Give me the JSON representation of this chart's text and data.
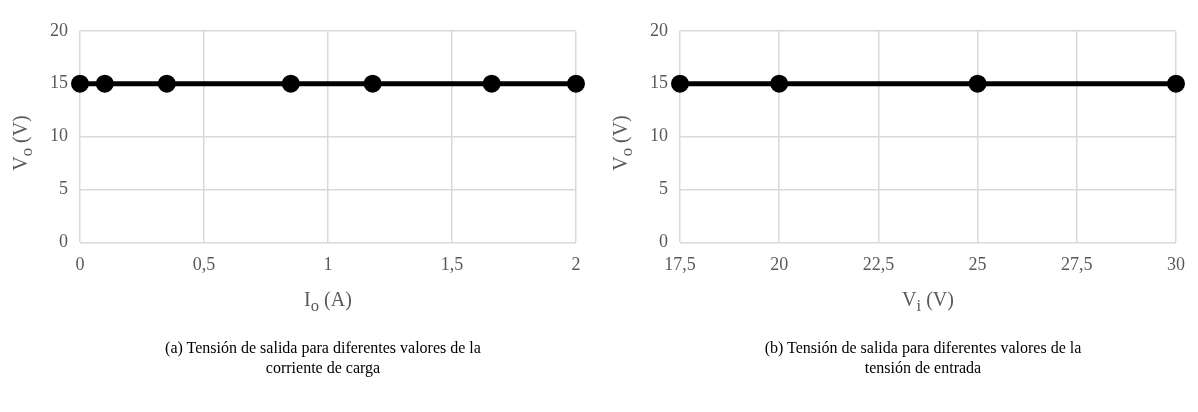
{
  "chart_data": [
    {
      "type": "line",
      "title": "(a) Tensión de salida para diferentes valores de la corriente de carga",
      "xlabel": "I$_{o}$ (A)",
      "ylabel": "V$_{o}$ (V)",
      "x": [
        0,
        0.1,
        0.35,
        0.85,
        1.18,
        1.66,
        2
      ],
      "series": [
        {
          "color": "#000000",
          "values": [
            15,
            15,
            15,
            15,
            15,
            15,
            15
          ]
        }
      ],
      "xlim": [
        0,
        2
      ],
      "xticks": [
        0,
        {
          "value": 0.5,
          "label": "0,5"
        },
        1,
        {
          "value": 1.5,
          "label": "1,5"
        },
        2
      ],
      "ylim": [
        0,
        20
      ],
      "yticks": [
        0,
        5,
        10,
        15,
        20
      ],
      "grid": true,
      "legend": false,
      "marker": "circle",
      "line_style": "solid"
    },
    {
      "type": "line",
      "title": "(b) Tensión de salida para diferentes valores de la tensión de entrada",
      "xlabel": "V$_{i}$ (V)",
      "ylabel": "V$_{o}$ (V)",
      "x": [
        17.5,
        20,
        25,
        30
      ],
      "series": [
        {
          "color": "#000000",
          "values": [
            15,
            15,
            15,
            15
          ]
        }
      ],
      "xlim": [
        17.5,
        30
      ],
      "xticks": [
        {
          "value": 17.5,
          "label": "17,5"
        },
        20,
        {
          "value": 22.5,
          "label": "22,5"
        },
        25,
        {
          "value": 27.5,
          "label": "27,5"
        },
        30
      ],
      "ylim": [
        0,
        20
      ],
      "yticks": [
        0,
        5,
        10,
        15,
        20
      ],
      "grid": true,
      "legend": false,
      "marker": "circle",
      "line_style": "solid"
    }
  ]
}
